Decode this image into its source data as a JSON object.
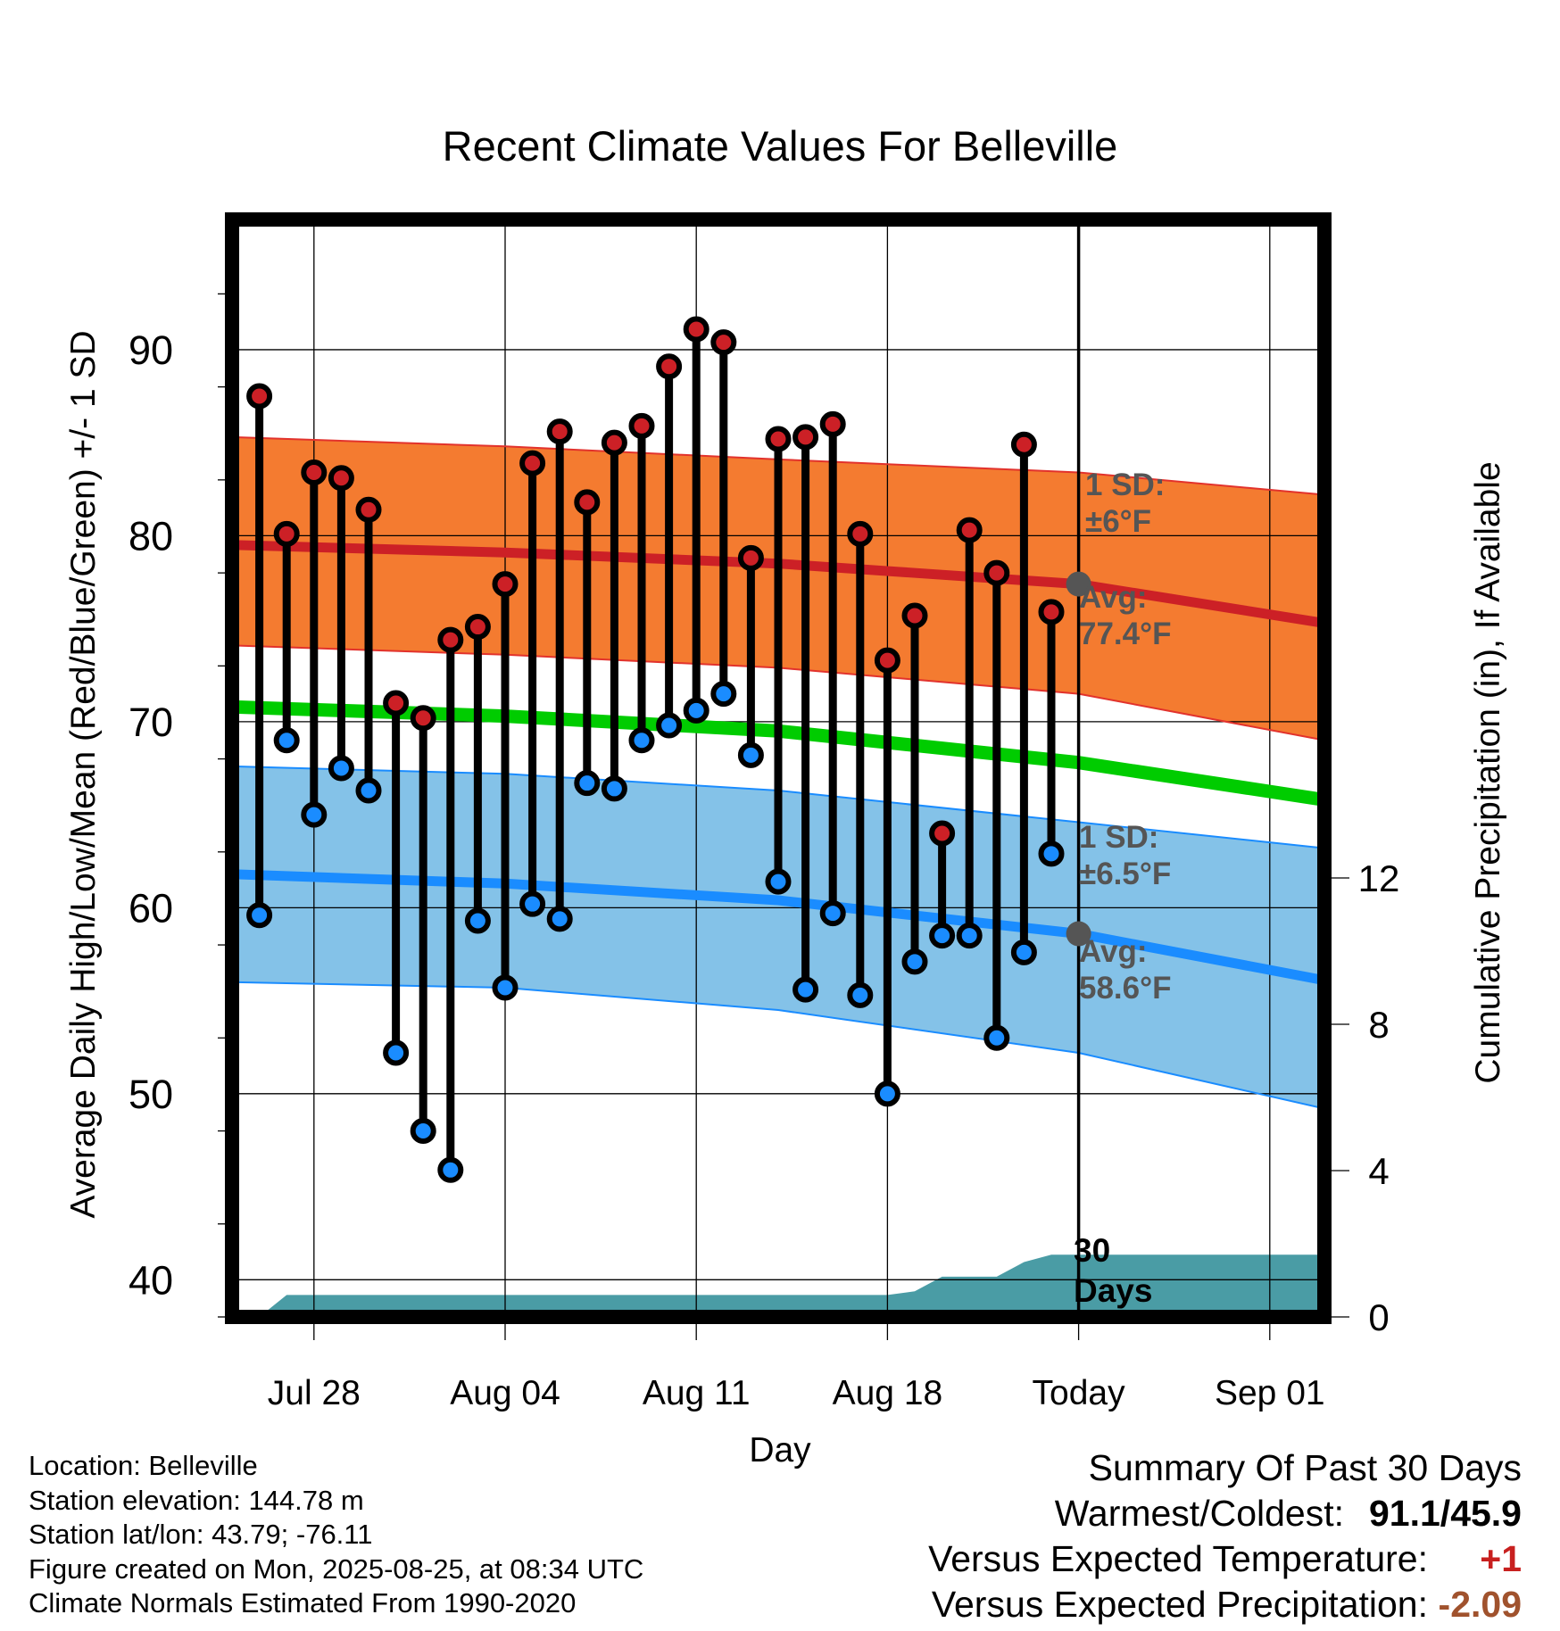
{
  "chart_data": {
    "type": "line",
    "title": "Recent Climate Values For Belleville",
    "xlabel": "Day",
    "ylabel": "Average Daily High/Low/Mean (Red/Blue/Green) +/- 1 SD",
    "y2label": "Cumulative Precipitation (in), If Available",
    "x_tick_labels": [
      "Jul 28",
      "Aug 04",
      "Aug 11",
      "Aug 18",
      "Today",
      "Sep 01"
    ],
    "x_tick_dates": [
      "2025-07-28",
      "2025-08-04",
      "2025-08-11",
      "2025-08-18",
      "2025-08-25",
      "2025-09-01"
    ],
    "xlim": [
      "2025-07-25",
      "2025-09-03"
    ],
    "ylim": [
      38,
      97
    ],
    "y_ticks": [
      40,
      50,
      60,
      70,
      80,
      90
    ],
    "y2lim": [
      0,
      30
    ],
    "y2_ticks": [
      0,
      4,
      8,
      12
    ],
    "today": "2025-08-25",
    "grid": true,
    "daily_observations": {
      "dates": [
        "2025-07-26",
        "2025-07-27",
        "2025-07-28",
        "2025-07-29",
        "2025-07-30",
        "2025-07-31",
        "2025-08-01",
        "2025-08-02",
        "2025-08-03",
        "2025-08-04",
        "2025-08-05",
        "2025-08-06",
        "2025-08-07",
        "2025-08-08",
        "2025-08-09",
        "2025-08-10",
        "2025-08-11",
        "2025-08-12",
        "2025-08-13",
        "2025-08-14",
        "2025-08-15",
        "2025-08-16",
        "2025-08-17",
        "2025-08-18",
        "2025-08-19",
        "2025-08-20",
        "2025-08-21",
        "2025-08-22",
        "2025-08-23",
        "2025-08-24"
      ],
      "high": [
        87.5,
        80.1,
        83.4,
        83.1,
        81.4,
        71.0,
        70.2,
        74.4,
        75.1,
        77.4,
        83.9,
        85.6,
        81.8,
        85.0,
        85.9,
        89.1,
        91.1,
        90.4,
        78.8,
        85.2,
        85.3,
        86.0,
        80.1,
        73.3,
        75.7,
        64.0,
        80.3,
        78.0,
        84.9,
        75.9
      ],
      "low": [
        59.6,
        69.0,
        65.0,
        67.5,
        66.3,
        52.2,
        48.0,
        45.9,
        59.3,
        55.7,
        60.2,
        59.4,
        66.7,
        66.4,
        69.0,
        69.8,
        70.6,
        71.5,
        68.2,
        61.4,
        55.6,
        59.7,
        55.3,
        50.0,
        57.1,
        58.5,
        58.5,
        53.0,
        57.6,
        62.9
      ]
    },
    "series": [
      {
        "name": "Average High",
        "color": "#cc2026",
        "x": [
          "2025-07-25",
          "2025-08-04",
          "2025-08-14",
          "2025-08-25",
          "2025-09-03"
        ],
        "values": [
          79.5,
          79.1,
          78.5,
          77.4,
          75.3
        ]
      },
      {
        "name": "High +1 SD",
        "color": "#e2322c",
        "x": [
          "2025-07-25",
          "2025-08-04",
          "2025-08-14",
          "2025-08-25",
          "2025-09-03"
        ],
        "values": [
          85.3,
          84.8,
          84.1,
          83.4,
          82.2
        ]
      },
      {
        "name": "High -1 SD",
        "color": "#e2322c",
        "x": [
          "2025-07-25",
          "2025-08-04",
          "2025-08-14",
          "2025-08-25",
          "2025-09-03"
        ],
        "values": [
          74.1,
          73.6,
          72.9,
          71.5,
          69.0
        ]
      },
      {
        "name": "Average Mean",
        "color": "#00cc00",
        "x": [
          "2025-07-25",
          "2025-08-04",
          "2025-08-14",
          "2025-08-25",
          "2025-09-03"
        ],
        "values": [
          70.8,
          70.3,
          69.5,
          67.8,
          65.8
        ]
      },
      {
        "name": "Average Low",
        "color": "#1a8cff",
        "x": [
          "2025-07-25",
          "2025-08-04",
          "2025-08-14",
          "2025-08-25",
          "2025-09-03"
        ],
        "values": [
          61.8,
          61.3,
          60.4,
          58.6,
          56.1
        ]
      },
      {
        "name": "Low +1 SD",
        "color": "#1a8cff",
        "x": [
          "2025-07-25",
          "2025-08-04",
          "2025-08-14",
          "2025-08-25",
          "2025-09-03"
        ],
        "values": [
          67.6,
          67.2,
          66.3,
          64.6,
          63.2
        ]
      },
      {
        "name": "Low -1 SD",
        "color": "#1a8cff",
        "x": [
          "2025-07-25",
          "2025-08-04",
          "2025-08-14",
          "2025-08-25",
          "2025-09-03"
        ],
        "values": [
          56.0,
          55.7,
          54.5,
          52.2,
          49.2
        ]
      }
    ],
    "precipitation": {
      "color": "#4a9ca5",
      "dates": [
        "2025-07-26",
        "2025-07-27",
        "2025-08-18",
        "2025-08-19",
        "2025-08-20",
        "2025-08-22",
        "2025-08-23",
        "2025-08-24",
        "2025-09-03"
      ],
      "values": [
        0.0,
        0.6,
        0.6,
        0.7,
        1.1,
        1.1,
        1.5,
        1.7,
        1.7
      ]
    },
    "annotations": {
      "high_sd_title": "1 SD:",
      "high_sd_value": "±6°F",
      "high_avg_title": "Avg:",
      "high_avg_value": "77.4°F",
      "low_sd_title": "1 SD:",
      "low_sd_value": "±6.5°F",
      "low_avg_title": "Avg:",
      "low_avg_value": "58.6°F",
      "days_line1": "30",
      "days_line2": "Days"
    }
  },
  "footer": {
    "location": "Location: Belleville",
    "elevation": "Station elevation: 144.78 m",
    "latlon": "Station lat/lon: 43.79; -76.11",
    "created": "Figure created on Mon, 2025-08-25, at 08:34 UTC",
    "normals": "Climate Normals Estimated From 1990-2020"
  },
  "summary": {
    "title": "Summary Of Past 30 Days",
    "warm_cold_label": "Warmest/Coldest:",
    "warm_cold_value": "91.1/45.9",
    "temp_label": "Versus Expected Temperature:",
    "temp_value": "+1",
    "temp_color": "#c8201f",
    "precip_label": "Versus Expected Precipitation:",
    "precip_value": "-2.09",
    "precip_color": "#a0522d"
  }
}
